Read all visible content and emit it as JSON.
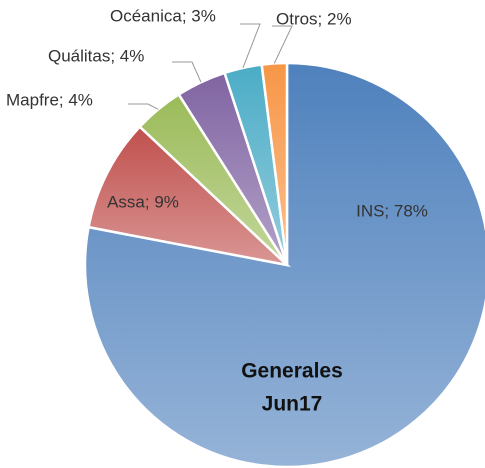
{
  "chart_data": {
    "type": "pie",
    "values": [
      78,
      9,
      4,
      4,
      3,
      2
    ],
    "value_labels": [
      "INS; 78%",
      "Assa; 9%",
      "Mapfre; 4%",
      "Quálitas; 4%",
      "Océanica; 3%",
      "Otros; 2%"
    ],
    "colors": [
      "#4f81bd",
      "#c0504d",
      "#9bbb59",
      "#8064a2",
      "#4bacc6",
      "#f79646"
    ],
    "center_text": [
      "Generales",
      "Jun17"
    ]
  }
}
